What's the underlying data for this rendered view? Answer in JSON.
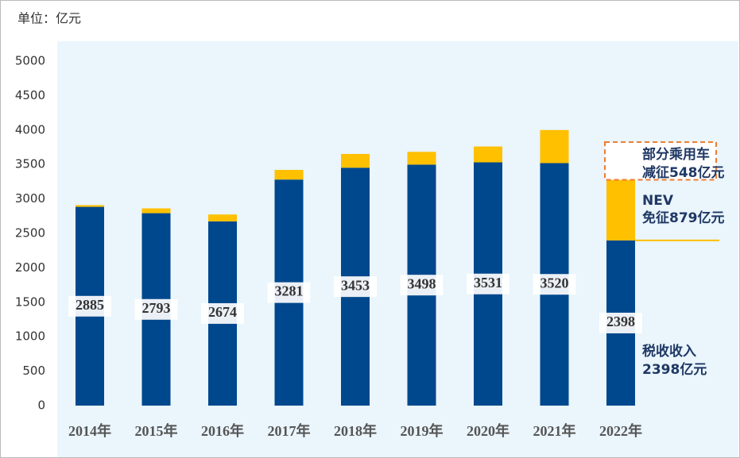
{
  "chart_data": {
    "type": "bar",
    "stacked": true,
    "unit": "单位：亿元",
    "categories": [
      "2014年",
      "2015年",
      "2016年",
      "2017年",
      "2018年",
      "2019年",
      "2020年",
      "2021年",
      "2022年"
    ],
    "series": [
      {
        "color": "#00488d",
        "values": [
          2885,
          2793,
          2674,
          3281,
          3453,
          3498,
          3531,
          3520,
          2398
        ],
        "data_labels": true
      },
      {
        "color": "#ffc000",
        "values": [
          25,
          70,
          100,
          140,
          200,
          185,
          230,
          480,
          879
        ]
      },
      {
        "color": "#ed7d31",
        "dashed": true,
        "values": [
          null,
          null,
          null,
          null,
          null,
          null,
          null,
          null,
          548
        ]
      }
    ],
    "ylim": [
      0,
      5000
    ],
    "yticks": [
      0,
      500,
      1000,
      1500,
      2000,
      2500,
      3000,
      3500,
      4000,
      4500,
      5000
    ],
    "annotations": [
      {
        "lines": [
          "部分乘用车",
          "减征548亿元"
        ],
        "series": 2
      },
      {
        "lines": [
          "NEV",
          "免征879亿元"
        ],
        "series": 1
      },
      {
        "lines": [
          "税收收入",
          "2398亿元"
        ],
        "series": 0
      }
    ]
  }
}
